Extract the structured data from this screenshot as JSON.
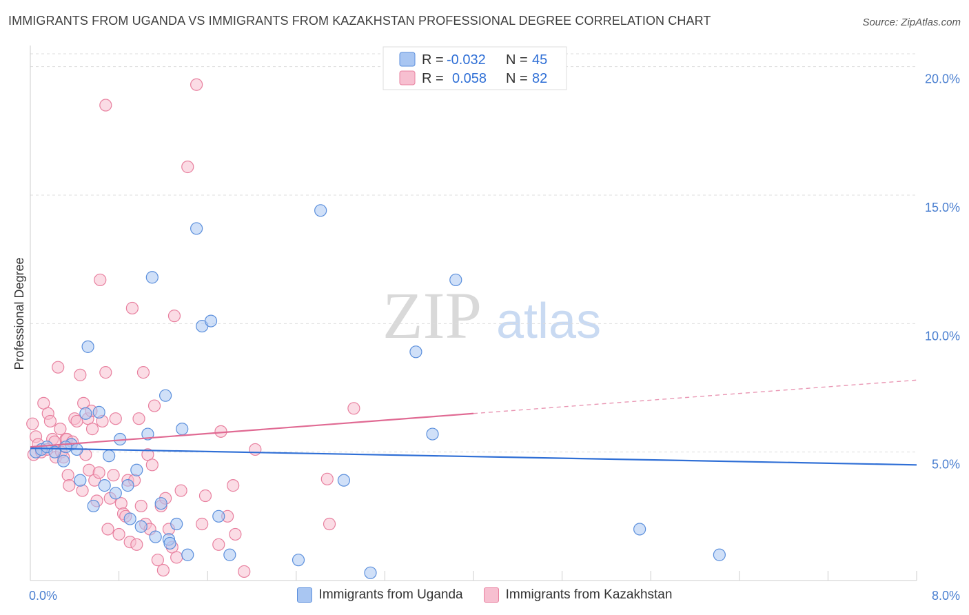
{
  "header": {
    "title": "IMMIGRANTS FROM UGANDA VS IMMIGRANTS FROM KAZAKHSTAN PROFESSIONAL DEGREE CORRELATION CHART",
    "source": "Source: ZipAtlas.com"
  },
  "watermark": {
    "zip": "ZIP",
    "atlas": "atlas"
  },
  "colors": {
    "uganda_fill": "#a9c6f2",
    "uganda_stroke": "#5b8fdc",
    "uganda_line": "#2f6fd6",
    "kaz_fill": "#f7bfd0",
    "kaz_stroke": "#e8809f",
    "kaz_line": "#e06a93",
    "grid": "#dddddd",
    "tick_label": "#4a7fd0"
  },
  "legend": {
    "rows": [
      {
        "r_label": "R =",
        "r_value": "-0.032",
        "n_label": "N =",
        "n_value": "45"
      },
      {
        "r_label": "R =",
        "r_value": "0.058",
        "n_label": "N =",
        "n_value": "82"
      }
    ]
  },
  "bottom_legend": {
    "uganda": "Immigrants from Uganda",
    "kazakhstan": "Immigrants from Kazakhstan"
  },
  "chart_data": {
    "type": "scatter",
    "title": "IMMIGRANTS FROM UGANDA VS IMMIGRANTS FROM KAZAKHSTAN PROFESSIONAL DEGREE CORRELATION CHART",
    "xlabel": "",
    "ylabel": "Professional Degree",
    "xlim": [
      0,
      8
    ],
    "ylim": [
      0,
      20.5
    ],
    "x_tick_labels": [
      "0.0%",
      "8.0%"
    ],
    "y_ticks": [
      {
        "value": 5,
        "label": "5.0%"
      },
      {
        "value": 10,
        "label": "10.0%"
      },
      {
        "value": 15,
        "label": "15.0%"
      },
      {
        "value": 20,
        "label": "20.0%"
      }
    ],
    "series": [
      {
        "name": "Immigrants from Uganda",
        "r": -0.032,
        "n": 45,
        "trend": {
          "x0": 0,
          "y0": 5.15,
          "x1": 8,
          "y1": 4.5,
          "dashed_from": null
        },
        "points": [
          [
            0.05,
            5.0
          ],
          [
            0.1,
            5.1
          ],
          [
            0.15,
            5.2
          ],
          [
            0.22,
            5.0
          ],
          [
            0.3,
            4.65
          ],
          [
            0.37,
            5.3
          ],
          [
            0.42,
            5.1
          ],
          [
            0.45,
            3.9
          ],
          [
            0.5,
            6.5
          ],
          [
            0.52,
            9.1
          ],
          [
            0.57,
            2.9
          ],
          [
            0.62,
            6.55
          ],
          [
            0.67,
            3.7
          ],
          [
            0.71,
            4.85
          ],
          [
            0.77,
            3.4
          ],
          [
            0.81,
            5.5
          ],
          [
            0.88,
            3.7
          ],
          [
            0.9,
            2.4
          ],
          [
            0.96,
            4.3
          ],
          [
            1.0,
            2.1
          ],
          [
            1.06,
            5.7
          ],
          [
            1.1,
            11.8
          ],
          [
            1.13,
            1.7
          ],
          [
            1.18,
            3.0
          ],
          [
            1.22,
            7.2
          ],
          [
            1.25,
            1.6
          ],
          [
            1.26,
            1.45
          ],
          [
            1.32,
            2.2
          ],
          [
            1.37,
            5.9
          ],
          [
            1.42,
            1.0
          ],
          [
            1.5,
            13.7
          ],
          [
            1.55,
            9.9
          ],
          [
            1.63,
            10.1
          ],
          [
            1.7,
            2.5
          ],
          [
            1.8,
            1.0
          ],
          [
            2.42,
            0.8
          ],
          [
            2.62,
            14.4
          ],
          [
            2.83,
            3.9
          ],
          [
            3.07,
            0.3
          ],
          [
            3.48,
            8.9
          ],
          [
            3.63,
            5.7
          ],
          [
            3.84,
            11.7
          ],
          [
            5.5,
            2.0
          ],
          [
            6.22,
            1.0
          ],
          [
            0.32,
            5.2
          ]
        ]
      },
      {
        "name": "Immigrants from Kazakhstan",
        "r": 0.058,
        "n": 82,
        "trend": {
          "x0": 0,
          "y0": 5.2,
          "x1": 8,
          "y1": 7.8,
          "dashed_from": 4.0
        },
        "points": [
          [
            0.02,
            6.1
          ],
          [
            0.03,
            4.9
          ],
          [
            0.05,
            5.6
          ],
          [
            0.07,
            5.3
          ],
          [
            0.1,
            5.0
          ],
          [
            0.12,
            6.9
          ],
          [
            0.15,
            5.1
          ],
          [
            0.16,
            6.5
          ],
          [
            0.18,
            6.2
          ],
          [
            0.2,
            5.5
          ],
          [
            0.22,
            5.4
          ],
          [
            0.23,
            4.8
          ],
          [
            0.25,
            8.3
          ],
          [
            0.27,
            5.9
          ],
          [
            0.28,
            5.0
          ],
          [
            0.3,
            4.8
          ],
          [
            0.32,
            5.5
          ],
          [
            0.34,
            4.1
          ],
          [
            0.35,
            3.7
          ],
          [
            0.33,
            5.5
          ],
          [
            0.38,
            5.4
          ],
          [
            0.4,
            6.3
          ],
          [
            0.42,
            6.2
          ],
          [
            0.45,
            8.0
          ],
          [
            0.47,
            3.5
          ],
          [
            0.48,
            6.9
          ],
          [
            0.5,
            4.9
          ],
          [
            0.52,
            6.3
          ],
          [
            0.53,
            4.3
          ],
          [
            0.55,
            6.6
          ],
          [
            0.56,
            5.9
          ],
          [
            0.58,
            3.9
          ],
          [
            0.6,
            3.1
          ],
          [
            0.62,
            4.2
          ],
          [
            0.63,
            11.7
          ],
          [
            0.65,
            6.2
          ],
          [
            0.68,
            8.1
          ],
          [
            0.7,
            2.0
          ],
          [
            0.72,
            3.2
          ],
          [
            0.75,
            4.1
          ],
          [
            0.77,
            6.3
          ],
          [
            0.8,
            1.8
          ],
          [
            0.82,
            3.0
          ],
          [
            0.84,
            2.6
          ],
          [
            0.86,
            2.5
          ],
          [
            0.88,
            3.9
          ],
          [
            0.9,
            1.5
          ],
          [
            0.92,
            10.6
          ],
          [
            0.94,
            3.9
          ],
          [
            0.96,
            1.4
          ],
          [
            0.98,
            6.3
          ],
          [
            1.0,
            2.9
          ],
          [
            1.02,
            8.1
          ],
          [
            1.04,
            2.2
          ],
          [
            1.06,
            4.9
          ],
          [
            1.08,
            2.0
          ],
          [
            1.1,
            4.5
          ],
          [
            1.12,
            6.8
          ],
          [
            1.15,
            0.8
          ],
          [
            1.18,
            2.9
          ],
          [
            1.2,
            0.4
          ],
          [
            1.22,
            3.2
          ],
          [
            1.25,
            2.0
          ],
          [
            1.28,
            1.3
          ],
          [
            1.3,
            10.3
          ],
          [
            1.32,
            0.9
          ],
          [
            1.36,
            3.5
          ],
          [
            1.42,
            16.1
          ],
          [
            1.5,
            19.3
          ],
          [
            1.55,
            2.2
          ],
          [
            1.58,
            3.3
          ],
          [
            1.7,
            1.4
          ],
          [
            1.72,
            5.8
          ],
          [
            1.78,
            2.5
          ],
          [
            1.83,
            3.7
          ],
          [
            1.85,
            1.8
          ],
          [
            1.93,
            0.35
          ],
          [
            2.03,
            5.1
          ],
          [
            2.68,
            3.95
          ],
          [
            2.7,
            2.2
          ],
          [
            2.92,
            6.7
          ],
          [
            0.68,
            18.5
          ]
        ]
      }
    ]
  }
}
